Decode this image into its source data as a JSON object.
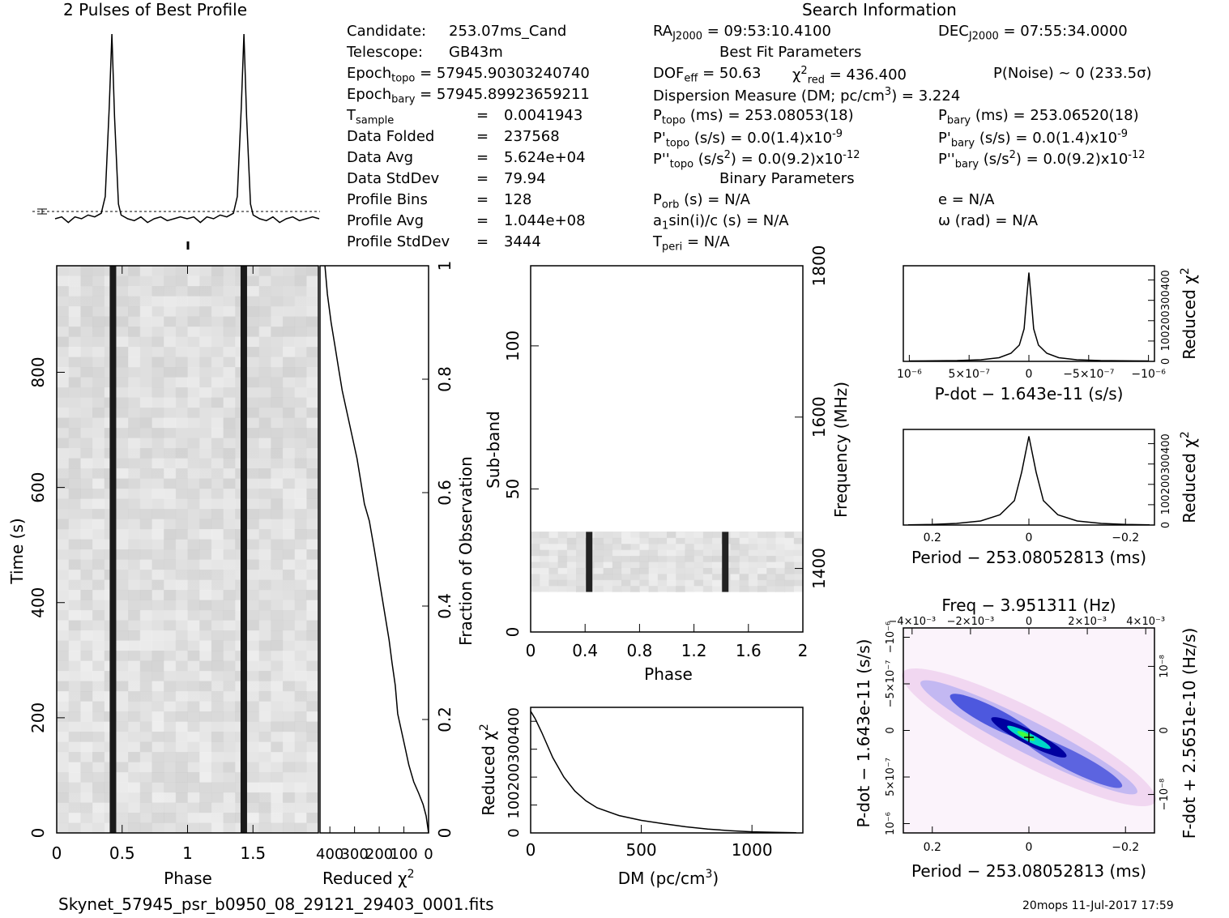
{
  "profile_title": "2 Pulses of Best Profile",
  "search_title": "Search Information",
  "candidate": {
    "label": "Candidate:",
    "value": "253.07ms_Cand"
  },
  "telescope": {
    "label": "Telescope:",
    "value": "GB43m"
  },
  "epoch_topo": {
    "label": "Epoch",
    "sub": "topo",
    "value": "= 57945.90303240740"
  },
  "epoch_bary": {
    "label": "Epoch",
    "sub": "bary",
    "value": "= 57945.89923659211"
  },
  "stats": [
    {
      "label": "T",
      "sub": "sample",
      "eq": "=",
      "value": "0.0041943"
    },
    {
      "label": "Data Folded",
      "sub": "",
      "eq": "=",
      "value": "237568"
    },
    {
      "label": "Data Avg",
      "sub": "",
      "eq": "=",
      "value": "5.624e+04"
    },
    {
      "label": "Data StdDev",
      "sub": "",
      "eq": "=",
      "value": "79.94"
    },
    {
      "label": "Profile Bins",
      "sub": "",
      "eq": "=",
      "value": "128"
    },
    {
      "label": "Profile Avg",
      "sub": "",
      "eq": "=",
      "value": "1.044e+08"
    },
    {
      "label": "Profile StdDev",
      "sub": "",
      "eq": "=",
      "value": "3444"
    }
  ],
  "ra": {
    "label": "RA",
    "sub": "J2000",
    "value": "= 09:53:10.4100"
  },
  "dec": {
    "label": "DEC",
    "sub": "J2000",
    "value": "= 07:55:34.0000"
  },
  "best_fit_title": "Best Fit Parameters",
  "dof": {
    "label": "DOF",
    "sub": "eff",
    "value": "= 50.63"
  },
  "chi2": {
    "label": "χ",
    "sup": "2",
    "sub": "red",
    "value": "= 436.400"
  },
  "pnoise": "P(Noise) ~ 0    (233.5σ)",
  "dm_line": {
    "text": "Dispersion Measure (DM; pc/cm",
    "sup": "3",
    "end": ") = 3.224"
  },
  "p_topo": {
    "label": "P",
    "sub": "topo",
    "value": "(ms) =  253.08053(18)"
  },
  "p_bary": {
    "label": "P",
    "sub": "bary",
    "value": "(ms) =  253.06520(18)"
  },
  "pd_topo": {
    "label": "P'",
    "sub": "topo",
    "value": "(s/s) = 0.0(1.4)x10",
    "exp": "-9"
  },
  "pd_bary": {
    "label": "P'",
    "sub": "bary",
    "value": "(s/s) = 0.0(1.4)x10",
    "exp": "-9"
  },
  "pdd_topo": {
    "label": "P''",
    "sub": "topo",
    "value": "(s/s",
    "mid": "2",
    "value2": ") = 0.0(9.2)x10",
    "exp": "-12"
  },
  "pdd_bary": {
    "label": "P''",
    "sub": "bary",
    "value": "(s/s",
    "mid": "2",
    "value2": ") = 0.0(9.2)x10",
    "exp": "-12"
  },
  "binary_title": "Binary Parameters",
  "porb": {
    "label": "P",
    "sub": "orb",
    "value": "(s) = N/A"
  },
  "a1": {
    "label": "a",
    "sub": "1",
    "value": "sin(i)/c (s) = N/A"
  },
  "tperi": {
    "label": "T",
    "sub": "peri",
    "value": "= N/A"
  },
  "ecc": "e = N/A",
  "omega": "ω (rad) = N/A",
  "filename": "Skynet_57945_psr_b0950_08_29121_29403_0001.fits",
  "footer_right": "20mops 11-Jul-2017 17:59",
  "axes": {
    "time_label": "Time (s)",
    "phase_label": "Phase",
    "reduced_chi2_label": "Reduced χ",
    "chi2_sup": "2",
    "fraction_label": "Fraction of Observation",
    "subband_label": "Sub-band",
    "frequency_label": "Frequency (MHz)",
    "dm_label": "DM (pc/cm",
    "dm_label_sup": "3",
    "dm_label_end": ")",
    "pdot_label": "P-dot − 1.643e-11 (s/s)",
    "period_label": "Period − 253.08052813 (ms)",
    "freq_label": "Freq − 3.951311 (Hz)",
    "fdot_label": "F-dot + 2.5651e-10 (Hz/s)",
    "pdot_y_label": "P-dot − 1.643e-11 (s/s)"
  },
  "chart_data": [
    {
      "type": "line",
      "id": "pulse-profile",
      "title": "2 Pulses of Best Profile",
      "x": [
        0,
        0.05,
        0.1,
        0.15,
        0.2,
        0.25,
        0.3,
        0.35,
        0.38,
        0.41,
        0.43,
        0.45,
        0.48,
        0.5,
        0.55,
        0.6,
        0.65,
        0.7,
        0.75,
        0.8,
        0.85,
        0.9,
        0.95,
        1.0
      ],
      "values": [
        0.0,
        0.01,
        -0.02,
        0.01,
        0.0,
        0.02,
        0.01,
        0.03,
        0.12,
        0.6,
        1.0,
        0.55,
        0.08,
        0.02,
        0.0,
        -0.01,
        0.01,
        -0.02,
        0.0,
        0.01,
        -0.01,
        0.0,
        0.01,
        0.0
      ],
      "repeat": 2
    },
    {
      "type": "heatmap",
      "id": "time-phase",
      "xlabel": "Phase",
      "ylabel": "Time (s)",
      "xlim": [
        0,
        2
      ],
      "ylim": [
        0,
        985
      ],
      "xticks": [
        "0",
        "0.5",
        "1",
        "1.5"
      ],
      "yticks": [
        0,
        200,
        400,
        600,
        800
      ],
      "pulse_phases": [
        0.43,
        1.43
      ]
    },
    {
      "type": "line",
      "id": "time-chi2",
      "xlabel": "Reduced χ2",
      "xticks": [
        "400",
        "300",
        "200",
        "100",
        "0"
      ],
      "right_axis": "Fraction of Observation",
      "right_ticks": [
        0,
        0.2,
        0.4,
        0.6,
        0.8,
        1
      ],
      "x": [
        0,
        10,
        22,
        40,
        60,
        80,
        95,
        110,
        125,
        135,
        148,
        160,
        175,
        190,
        205,
        220,
        240,
        260,
        275,
        290,
        310,
        330,
        350,
        365,
        380,
        395,
        410,
        420
      ],
      "y": [
        0.0,
        0.03,
        0.05,
        0.07,
        0.09,
        0.12,
        0.15,
        0.18,
        0.21,
        0.26,
        0.3,
        0.34,
        0.38,
        0.42,
        0.46,
        0.5,
        0.55,
        0.58,
        0.62,
        0.66,
        0.7,
        0.74,
        0.78,
        0.82,
        0.86,
        0.9,
        0.95,
        1.0
      ]
    },
    {
      "type": "heatmap",
      "id": "subband-phase",
      "xlabel": "Phase",
      "ylabel": "Sub-band",
      "xlim": [
        0,
        2
      ],
      "ylim": [
        0,
        128
      ],
      "xticks": [
        "0",
        "0.4",
        "0.8",
        "1.2",
        "1.6",
        "2"
      ],
      "yticks": [
        0,
        50,
        100
      ],
      "right_axis": "Frequency (MHz)",
      "right_ticks": [
        1400,
        1600,
        1800
      ],
      "occupied_subbands": [
        14,
        35
      ],
      "pulse_phases": [
        0.43,
        1.43
      ]
    },
    {
      "type": "line",
      "id": "dm-chi2",
      "xlabel": "DM (pc/cm3)",
      "ylabel": "Reduced χ2",
      "xticks": [
        0,
        500,
        1000
      ],
      "yticks": [
        "0",
        "100",
        "200",
        "300",
        "400"
      ],
      "x": [
        0,
        20,
        50,
        100,
        150,
        200,
        250,
        300,
        400,
        500,
        600,
        700,
        800,
        900,
        1000,
        1100,
        1200
      ],
      "values": [
        436,
        410,
        360,
        270,
        200,
        150,
        115,
        90,
        62,
        45,
        33,
        22,
        14,
        8,
        4,
        2,
        1
      ]
    },
    {
      "type": "line",
      "id": "pdot-chi2",
      "xlabel": "P-dot − 1.643e-11 (s/s)",
      "ylabel": "Reduced χ2",
      "xticks": [
        "10⁻⁶",
        "5×10⁻⁷",
        "0",
        "−5×10⁻⁷",
        "−10⁻⁶"
      ],
      "yticks": [
        "0",
        "100",
        "200",
        "300",
        "400"
      ],
      "x": [
        1.0,
        0.6,
        0.4,
        0.25,
        0.15,
        0.08,
        0.04,
        0.02,
        0.0,
        -0.02,
        -0.04,
        -0.08,
        -0.15,
        -0.25,
        -0.4,
        -0.6,
        -1.0
      ],
      "values": [
        2,
        4,
        8,
        18,
        40,
        80,
        160,
        300,
        436,
        300,
        160,
        80,
        40,
        18,
        8,
        4,
        2
      ]
    },
    {
      "type": "line",
      "id": "period-chi2",
      "xlabel": "Period − 253.08052813 (ms)",
      "ylabel": "Reduced χ2",
      "xticks": [
        "0.2",
        "0",
        "−0.2"
      ],
      "yticks": [
        "0",
        "100",
        "200",
        "300",
        "400"
      ],
      "x": [
        0.25,
        0.2,
        0.15,
        0.1,
        0.06,
        0.03,
        0.015,
        0.0,
        -0.015,
        -0.03,
        -0.06,
        -0.1,
        -0.15,
        -0.2,
        -0.25
      ],
      "values": [
        1,
        3,
        8,
        20,
        50,
        120,
        260,
        436,
        260,
        120,
        50,
        20,
        8,
        3,
        1
      ]
    },
    {
      "type": "heatmap",
      "id": "period-pdot",
      "xlabel": "Period − 253.08052813 (ms)",
      "ylabel": "P-dot − 1.643e-11 (s/s)",
      "top_label": "Freq − 3.951311 (Hz)",
      "right_label": "F-dot + 2.5651e-10 (Hz/s)",
      "xticks": [
        "0.2",
        "0",
        "−0.2"
      ],
      "top_ticks": [
        "−4×10⁻³",
        "−2×10⁻³",
        "0",
        "2×10⁻³",
        "4×10⁻³"
      ],
      "yticks": [
        "10⁻⁶",
        "5×10⁻⁷",
        "0",
        "−5×10⁻⁷",
        "−10⁻⁶"
      ],
      "right_ticks": [
        "−10⁻⁸",
        "0",
        "10⁻⁸"
      ],
      "colors": [
        "#ffffff",
        "#e8c8f0",
        "#4040e0",
        "#0000a0",
        "#00e0c0",
        "#40ff40"
      ]
    }
  ]
}
